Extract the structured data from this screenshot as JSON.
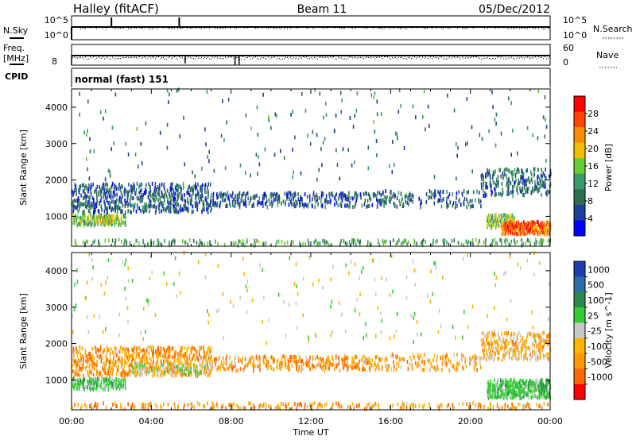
{
  "header": {
    "site": "Halley (fitACF)",
    "beam": "Beam 11",
    "date": "05/Dec/2012"
  },
  "param_panels": {
    "nsky": {
      "label": "N.Sky",
      "ticks": [
        "10^5",
        "10^0"
      ]
    },
    "nsearch": {
      "label": "N.Search",
      "ticks": [
        "10^5",
        "10^0"
      ]
    },
    "freq": {
      "label_top": "Freq.",
      "label_unit": "[MHz]",
      "ticks": [
        "8"
      ]
    },
    "nave": {
      "label": "Nave",
      "ticks": [
        "60",
        "0"
      ]
    },
    "cpid": {
      "label": "CPID",
      "value": "normal (fast) 151"
    }
  },
  "colors": {
    "power_scale": [
      "#0000ff",
      "#1a3f9c",
      "#2e6e50",
      "#3c9a6a",
      "#66cc33",
      "#f0c000",
      "#ff8c00",
      "#ff4500",
      "#ff0000"
    ],
    "velocity_scale": [
      "#ff0000",
      "#ff6600",
      "#ff9900",
      "#ffb400",
      "#c8c8c8",
      "#33cc33",
      "#2a8a50",
      "#2c6ea8",
      "#1a3fb0"
    ],
    "ground_scatter": "#909090"
  },
  "chart_data": [
    {
      "type": "heatmap",
      "panel": "power",
      "ylabel": "Slant Range [km]",
      "ylim": [
        180,
        4500
      ],
      "yticks": [
        1000,
        2000,
        3000,
        4000
      ],
      "xlim": [
        0,
        24
      ],
      "colorbar": {
        "label": "Power [dB]",
        "range": [
          0,
          32
        ],
        "ticks": [
          "4",
          "8",
          "12",
          "16",
          "20",
          "24",
          "28"
        ]
      },
      "regions": [
        {
          "t": [
            0.0,
            2.7
          ],
          "r": [
            740,
            1050
          ],
          "value": 15,
          "density": 0.6
        },
        {
          "t": [
            1.2,
            2.0
          ],
          "r": [
            850,
            1050
          ],
          "value": 20,
          "density": 0.5
        },
        {
          "t": [
            0.0,
            7.0
          ],
          "r": [
            1100,
            1900
          ],
          "value": 7,
          "density": 0.35
        },
        {
          "t": [
            7.0,
            15.5
          ],
          "r": [
            1250,
            1650
          ],
          "value": 7,
          "density": 0.3
        },
        {
          "t": [
            15.5,
            20.5
          ],
          "r": [
            1250,
            1700
          ],
          "value": 8,
          "density": 0.2
        },
        {
          "t": [
            20.5,
            24.0
          ],
          "r": [
            1550,
            2300
          ],
          "value": 8,
          "density": 0.3
        },
        {
          "t": [
            20.8,
            22.2
          ],
          "r": [
            680,
            1050
          ],
          "value": 16,
          "density": 0.7
        },
        {
          "t": [
            21.5,
            24.0
          ],
          "r": [
            500,
            850
          ],
          "value": 25,
          "density": 0.8
        },
        {
          "t": [
            0.0,
            24.0
          ],
          "r": [
            200,
            360
          ],
          "value": 13,
          "density": 0.2
        },
        {
          "t": [
            0.0,
            24.0
          ],
          "r": [
            2000,
            4500
          ],
          "value": 10,
          "density": 0.012
        }
      ]
    },
    {
      "type": "heatmap",
      "panel": "velocity",
      "ylabel": "Slant Range [km]",
      "xlabel": "Time UT",
      "ylim": [
        180,
        4500
      ],
      "yticks": [
        1000,
        2000,
        3000,
        4000
      ],
      "xlim": [
        0,
        24
      ],
      "xticks": [
        "00:00",
        "04:00",
        "08:00",
        "12:00",
        "16:00",
        "20:00",
        "00:00"
      ],
      "colorbar": {
        "label": "Velocity [m s^-1]",
        "ticks": [
          "1000",
          "500",
          "100",
          "25",
          "-25",
          "-100",
          "-500",
          "-1000"
        ]
      },
      "regions": [
        {
          "t": [
            0.0,
            2.7
          ],
          "r": [
            740,
            1050
          ],
          "value": 60,
          "density": 0.6
        },
        {
          "t": [
            0.0,
            7.0
          ],
          "r": [
            1100,
            1900
          ],
          "value": -80,
          "density": 0.35
        },
        {
          "t": [
            3.0,
            7.0
          ],
          "r": [
            1150,
            1450
          ],
          "value": 0,
          "density": 0.4
        },
        {
          "t": [
            7.0,
            15.5
          ],
          "r": [
            1250,
            1650
          ],
          "value": -80,
          "density": 0.3
        },
        {
          "t": [
            15.5,
            20.5
          ],
          "r": [
            1250,
            1700
          ],
          "value": -60,
          "density": 0.2
        },
        {
          "t": [
            20.5,
            24.0
          ],
          "r": [
            1550,
            2300
          ],
          "value": -50,
          "density": 0.3
        },
        {
          "t": [
            20.8,
            24.0
          ],
          "r": [
            500,
            1000
          ],
          "value": 60,
          "density": 0.75
        },
        {
          "t": [
            0.0,
            24.0
          ],
          "r": [
            200,
            360
          ],
          "value": -80,
          "density": 0.2
        },
        {
          "t": [
            0.0,
            24.0
          ],
          "r": [
            2000,
            4500
          ],
          "value": 0,
          "density": 0.012
        }
      ]
    }
  ]
}
